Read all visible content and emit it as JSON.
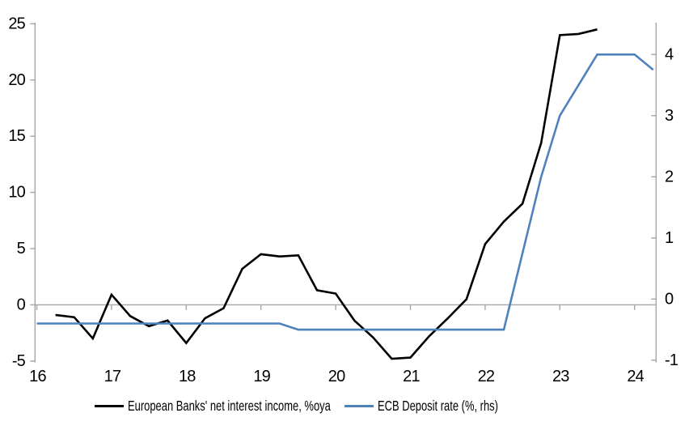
{
  "chart_data": {
    "type": "line",
    "title": "",
    "legend_position": "bottom",
    "gridlines": "zero-line-only",
    "axis_color": "#a6a6a6",
    "background_color": "#ffffff",
    "x_axis": {
      "label": "",
      "ticks": [
        "16",
        "17",
        "18",
        "19",
        "20",
        "21",
        "22",
        "23",
        "24"
      ],
      "unit": "year (20xx), quarterly data"
    },
    "left_axis": {
      "label": "",
      "ticks": [
        25,
        20,
        15,
        10,
        5,
        0,
        -5
      ],
      "range": [
        -5,
        25
      ],
      "applies_to": "European Banks' net interest income, %oya"
    },
    "right_axis": {
      "label": "",
      "ticks": [
        4,
        3,
        2,
        1,
        0,
        -1
      ],
      "range": [
        -1,
        4.5
      ],
      "applies_to": "ECB Deposit rate (%, rhs)"
    },
    "series": [
      {
        "name": "European Banks' net interest income, %oya",
        "axis": "left",
        "color": "#000000",
        "quarters": [
          "16Q2",
          "16Q3",
          "16Q4",
          "17Q1",
          "17Q2",
          "17Q3",
          "17Q4",
          "18Q1",
          "18Q2",
          "18Q3",
          "18Q4",
          "19Q1",
          "19Q2",
          "19Q3",
          "19Q4",
          "20Q1",
          "20Q2",
          "20Q3",
          "20Q4",
          "21Q1",
          "21Q2",
          "21Q3",
          "21Q4",
          "22Q1",
          "22Q2",
          "22Q3",
          "22Q4",
          "23Q1",
          "23Q2",
          "23Q3"
        ],
        "values": [
          -0.9,
          -1.1,
          -3.0,
          0.9,
          -1.0,
          -1.9,
          -1.4,
          -3.4,
          -1.2,
          -0.3,
          3.2,
          4.5,
          4.3,
          4.4,
          1.3,
          1.0,
          -1.4,
          -2.9,
          -4.8,
          -4.7,
          -2.8,
          -1.2,
          0.5,
          5.4,
          7.4,
          9.0,
          14.4,
          24.0,
          24.1,
          24.5
        ]
      },
      {
        "name": "ECB Deposit rate (%, rhs)",
        "axis": "right",
        "color": "#4f81bd",
        "quarters": [
          "16Q1",
          "16Q2",
          "16Q3",
          "16Q4",
          "17Q1",
          "17Q2",
          "17Q3",
          "17Q4",
          "18Q1",
          "18Q2",
          "18Q3",
          "18Q4",
          "19Q1",
          "19Q2",
          "19Q3",
          "19Q4",
          "20Q1",
          "20Q2",
          "20Q3",
          "20Q4",
          "21Q1",
          "21Q2",
          "21Q3",
          "21Q4",
          "22Q1",
          "22Q2",
          "22Q3",
          "22Q4",
          "23Q1",
          "23Q2",
          "23Q3",
          "23Q4",
          "24Q1",
          "24Q2"
        ],
        "values": [
          -0.4,
          -0.4,
          -0.4,
          -0.4,
          -0.4,
          -0.4,
          -0.4,
          -0.4,
          -0.4,
          -0.4,
          -0.4,
          -0.4,
          -0.4,
          -0.4,
          -0.5,
          -0.5,
          -0.5,
          -0.5,
          -0.5,
          -0.5,
          -0.5,
          -0.5,
          -0.5,
          -0.5,
          -0.5,
          -0.5,
          0.75,
          2.0,
          3.0,
          3.5,
          4.0,
          4.0,
          4.0,
          3.75
        ]
      }
    ]
  }
}
